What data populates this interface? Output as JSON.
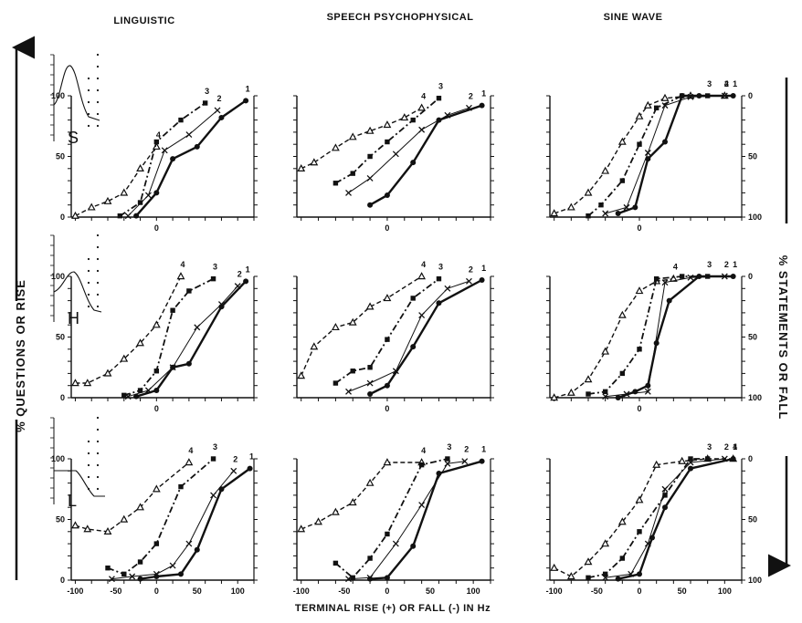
{
  "column_titles": [
    "LINGUISTIC",
    "SPEECH PSYCHOPHYSICAL",
    "SINE WAVE"
  ],
  "left_axis_label": "% QUESTIONS OR RISE",
  "right_axis_label": "% STATEMENTS OR FALL",
  "bottom_axis_label": "TERMINAL RISE (+) OR FALL (-) IN Hz",
  "row_letters": [
    "S",
    "H",
    "L"
  ],
  "styles": {
    "1": "solid",
    "2": "thin",
    "3": "dashdot",
    "4": "dash"
  },
  "chart_data": [
    {
      "type": "line",
      "row": 0,
      "col": 0,
      "xlim": [
        -105,
        120
      ],
      "ylim": [
        0,
        100
      ],
      "y_ticks": [
        0,
        50,
        100
      ],
      "x_ticks": [
        0
      ],
      "right_ticks": [],
      "series": [
        {
          "name": "4",
          "marker": "triangle",
          "x": [
            -100,
            -80,
            -60,
            -40,
            -20,
            0
          ],
          "y": [
            1,
            8,
            13,
            20,
            40,
            58
          ]
        },
        {
          "name": "3",
          "marker": "square",
          "x": [
            -45,
            -20,
            0,
            30,
            60
          ],
          "y": [
            1,
            12,
            62,
            80,
            94
          ]
        },
        {
          "name": "2",
          "marker": "x",
          "x": [
            -35,
            -10,
            10,
            40,
            75
          ],
          "y": [
            1,
            18,
            55,
            68,
            88
          ]
        },
        {
          "name": "1",
          "marker": "circle",
          "x": [
            -25,
            0,
            20,
            50,
            80,
            110
          ],
          "y": [
            1,
            20,
            48,
            58,
            82,
            96
          ]
        }
      ]
    },
    {
      "type": "line",
      "row": 0,
      "col": 1,
      "xlim": [
        -105,
        120
      ],
      "ylim": [
        0,
        100
      ],
      "y_ticks": [],
      "x_ticks": [
        0
      ],
      "right_ticks": [],
      "series": [
        {
          "name": "4",
          "marker": "triangle",
          "x": [
            -100,
            -85,
            -60,
            -40,
            -20,
            0,
            20,
            40
          ],
          "y": [
            40,
            45,
            57,
            66,
            71,
            76,
            82,
            90
          ]
        },
        {
          "name": "3",
          "marker": "square",
          "x": [
            -60,
            -40,
            -20,
            0,
            30,
            60
          ],
          "y": [
            28,
            36,
            50,
            62,
            80,
            98
          ]
        },
        {
          "name": "2",
          "marker": "x",
          "x": [
            -45,
            -20,
            10,
            40,
            70,
            95
          ],
          "y": [
            20,
            32,
            52,
            72,
            84,
            90
          ]
        },
        {
          "name": "1",
          "marker": "circle",
          "x": [
            -20,
            0,
            30,
            60,
            110
          ],
          "y": [
            10,
            18,
            45,
            80,
            92
          ]
        }
      ]
    },
    {
      "type": "line",
      "row": 0,
      "col": 2,
      "xlim": [
        -105,
        120
      ],
      "ylim": [
        0,
        100
      ],
      "y_ticks": [],
      "x_ticks": [
        0
      ],
      "right_ticks": [
        0,
        50,
        100
      ],
      "series": [
        {
          "name": "4",
          "marker": "triangle",
          "x": [
            -100,
            -80,
            -60,
            -40,
            -20,
            0,
            10,
            30,
            60,
            100
          ],
          "y": [
            3,
            8,
            20,
            38,
            62,
            83,
            92,
            98,
            100,
            100
          ]
        },
        {
          "name": "3",
          "marker": "square",
          "x": [
            -60,
            -45,
            -20,
            0,
            20,
            50,
            80
          ],
          "y": [
            1,
            10,
            30,
            60,
            90,
            100,
            100
          ]
        },
        {
          "name": "2",
          "marker": "x",
          "x": [
            -40,
            -15,
            10,
            30,
            60,
            100
          ],
          "y": [
            3,
            8,
            53,
            92,
            99,
            100
          ]
        },
        {
          "name": "1",
          "marker": "circle",
          "x": [
            -25,
            -5,
            10,
            30,
            50,
            70,
            110
          ],
          "y": [
            3,
            8,
            48,
            62,
            100,
            100,
            100
          ]
        }
      ]
    },
    {
      "type": "line",
      "row": 1,
      "col": 0,
      "xlim": [
        -105,
        120
      ],
      "ylim": [
        0,
        100
      ],
      "y_ticks": [
        0,
        50,
        100
      ],
      "x_ticks": [
        0
      ],
      "right_ticks": [],
      "series": [
        {
          "name": "4",
          "marker": "triangle",
          "x": [
            -100,
            -85,
            -60,
            -40,
            -20,
            0,
            30
          ],
          "y": [
            12,
            12,
            20,
            32,
            45,
            60,
            100
          ]
        },
        {
          "name": "3",
          "marker": "square",
          "x": [
            -40,
            -20,
            0,
            20,
            40,
            70
          ],
          "y": [
            2,
            6,
            22,
            72,
            88,
            98
          ]
        },
        {
          "name": "2",
          "marker": "x",
          "x": [
            -35,
            -10,
            20,
            50,
            80,
            100
          ],
          "y": [
            1,
            6,
            25,
            58,
            77,
            92
          ]
        },
        {
          "name": "1",
          "marker": "circle",
          "x": [
            -25,
            0,
            20,
            40,
            80,
            110
          ],
          "y": [
            1,
            6,
            25,
            28,
            75,
            96
          ]
        }
      ]
    },
    {
      "type": "line",
      "row": 1,
      "col": 1,
      "xlim": [
        -105,
        120
      ],
      "ylim": [
        0,
        100
      ],
      "y_ticks": [],
      "x_ticks": [
        0
      ],
      "right_ticks": [],
      "series": [
        {
          "name": "4",
          "marker": "triangle",
          "x": [
            -100,
            -85,
            -60,
            -40,
            -20,
            0,
            40
          ],
          "y": [
            18,
            42,
            58,
            62,
            75,
            82,
            100
          ]
        },
        {
          "name": "3",
          "marker": "square",
          "x": [
            -60,
            -40,
            -20,
            0,
            30,
            60
          ],
          "y": [
            12,
            22,
            25,
            48,
            82,
            98
          ]
        },
        {
          "name": "2",
          "marker": "x",
          "x": [
            -45,
            -20,
            10,
            40,
            70,
            95
          ],
          "y": [
            5,
            12,
            22,
            68,
            90,
            96
          ]
        },
        {
          "name": "1",
          "marker": "circle",
          "x": [
            -20,
            0,
            30,
            60,
            110
          ],
          "y": [
            3,
            10,
            42,
            78,
            97
          ]
        }
      ]
    },
    {
      "type": "line",
      "row": 1,
      "col": 2,
      "xlim": [
        -105,
        120
      ],
      "ylim": [
        0,
        100
      ],
      "y_ticks": [],
      "x_ticks": [
        0
      ],
      "right_ticks": [
        0,
        50,
        100
      ],
      "series": [
        {
          "name": "4",
          "marker": "triangle",
          "x": [
            -100,
            -80,
            -60,
            -40,
            -20,
            0,
            20,
            40
          ],
          "y": [
            0,
            4,
            15,
            38,
            68,
            88,
            96,
            98
          ]
        },
        {
          "name": "3",
          "marker": "square",
          "x": [
            -60,
            -40,
            -20,
            0,
            20,
            50,
            80
          ],
          "y": [
            3,
            5,
            20,
            40,
            98,
            100,
            100
          ]
        },
        {
          "name": "2",
          "marker": "x",
          "x": [
            -40,
            -15,
            10,
            30,
            60,
            100
          ],
          "y": [
            1,
            3,
            5,
            95,
            99,
            100
          ]
        },
        {
          "name": "1",
          "marker": "circle",
          "x": [
            -25,
            -5,
            10,
            20,
            35,
            70,
            110
          ],
          "y": [
            0,
            5,
            10,
            45,
            80,
            100,
            100
          ]
        }
      ]
    },
    {
      "type": "line",
      "row": 2,
      "col": 0,
      "xlim": [
        -105,
        120
      ],
      "ylim": [
        0,
        100
      ],
      "y_ticks": [
        0,
        50,
        100
      ],
      "x_ticks": [
        -100,
        -50,
        0,
        50,
        100
      ],
      "right_ticks": [],
      "series": [
        {
          "name": "4",
          "marker": "triangle",
          "x": [
            -100,
            -85,
            -60,
            -40,
            -20,
            0,
            40
          ],
          "y": [
            45,
            42,
            40,
            50,
            60,
            75,
            97
          ]
        },
        {
          "name": "3",
          "marker": "square",
          "x": [
            -60,
            -40,
            -20,
            0,
            30,
            70
          ],
          "y": [
            10,
            5,
            15,
            30,
            77,
            100
          ]
        },
        {
          "name": "2",
          "marker": "x",
          "x": [
            -55,
            -30,
            0,
            20,
            40,
            70,
            95
          ],
          "y": [
            1,
            3,
            5,
            12,
            30,
            70,
            90
          ]
        },
        {
          "name": "1",
          "marker": "circle",
          "x": [
            -20,
            0,
            30,
            50,
            80,
            115
          ],
          "y": [
            1,
            3,
            5,
            25,
            75,
            92
          ]
        }
      ]
    },
    {
      "type": "line",
      "row": 2,
      "col": 1,
      "xlim": [
        -105,
        120
      ],
      "ylim": [
        0,
        100
      ],
      "y_ticks": [],
      "x_ticks": [
        -100,
        -50,
        0,
        50,
        100
      ],
      "right_ticks": [],
      "series": [
        {
          "name": "4",
          "marker": "triangle",
          "x": [
            -100,
            -80,
            -60,
            -40,
            -20,
            0,
            40
          ],
          "y": [
            42,
            48,
            56,
            64,
            80,
            97,
            97
          ]
        },
        {
          "name": "3",
          "marker": "square",
          "x": [
            -60,
            -40,
            -20,
            0,
            40,
            70
          ],
          "y": [
            14,
            2,
            18,
            38,
            95,
            100
          ]
        },
        {
          "name": "2",
          "marker": "x",
          "x": [
            -45,
            -20,
            10,
            40,
            70,
            90
          ],
          "y": [
            1,
            2,
            30,
            62,
            96,
            98
          ]
        },
        {
          "name": "1",
          "marker": "circle",
          "x": [
            -20,
            0,
            30,
            60,
            110
          ],
          "y": [
            1,
            2,
            28,
            88,
            98
          ]
        }
      ]
    },
    {
      "type": "line",
      "row": 2,
      "col": 2,
      "xlim": [
        -105,
        120
      ],
      "ylim": [
        0,
        100
      ],
      "y_ticks": [],
      "x_ticks": [
        -100,
        -50,
        0,
        50,
        100
      ],
      "right_ticks": [
        0,
        50,
        100
      ],
      "series": [
        {
          "name": "4",
          "marker": "triangle",
          "x": [
            -100,
            -80,
            -60,
            -40,
            -20,
            0,
            20,
            50,
            80,
            110
          ],
          "y": [
            10,
            3,
            15,
            30,
            48,
            66,
            95,
            98,
            100,
            100
          ]
        },
        {
          "name": "3",
          "marker": "square",
          "x": [
            -60,
            -40,
            -20,
            0,
            30,
            60,
            80
          ],
          "y": [
            2,
            5,
            18,
            40,
            70,
            100,
            100
          ]
        },
        {
          "name": "2",
          "marker": "x",
          "x": [
            -40,
            -10,
            10,
            30,
            60,
            100
          ],
          "y": [
            2,
            5,
            30,
            75,
            97,
            100
          ]
        },
        {
          "name": "1",
          "marker": "circle",
          "x": [
            -25,
            0,
            15,
            30,
            60,
            110
          ],
          "y": [
            1,
            5,
            35,
            60,
            92,
            100
          ]
        }
      ]
    }
  ]
}
